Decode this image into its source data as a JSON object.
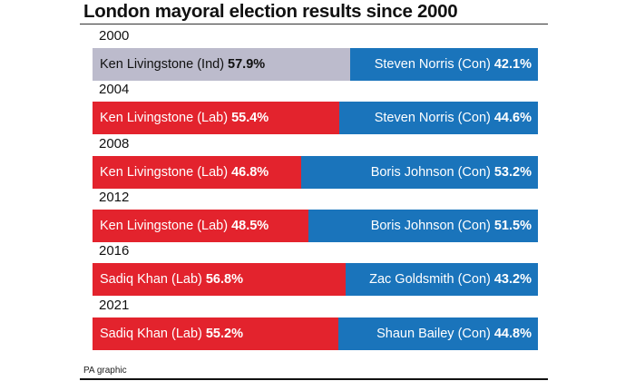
{
  "chart_data": {
    "type": "bar",
    "stacked": true,
    "orientation": "horizontal",
    "title": "London mayoral election results since 2000",
    "xlim": [
      0,
      100
    ],
    "categories": [
      "2000",
      "2004",
      "2008",
      "2012",
      "2016",
      "2021"
    ],
    "rows": [
      {
        "year": "2000",
        "left": {
          "name": "Ken Livingstone (Ind)",
          "pct": 57.9,
          "label": "57.9%",
          "party": "Ind"
        },
        "right": {
          "name": "Steven Norris (Con)",
          "pct": 42.1,
          "label": "42.1%",
          "party": "Con"
        }
      },
      {
        "year": "2004",
        "left": {
          "name": "Ken Livingstone (Lab)",
          "pct": 55.4,
          "label": "55.4%",
          "party": "Lab"
        },
        "right": {
          "name": "Steven Norris (Con)",
          "pct": 44.6,
          "label": "44.6%",
          "party": "Con"
        }
      },
      {
        "year": "2008",
        "left": {
          "name": "Ken Livingstone (Lab)",
          "pct": 46.8,
          "label": "46.8%",
          "party": "Lab"
        },
        "right": {
          "name": "Boris Johnson (Con)",
          "pct": 53.2,
          "label": "53.2%",
          "party": "Con"
        }
      },
      {
        "year": "2012",
        "left": {
          "name": "Ken Livingstone (Lab)",
          "pct": 48.5,
          "label": "48.5%",
          "party": "Lab"
        },
        "right": {
          "name": "Boris Johnson (Con)",
          "pct": 51.5,
          "label": "51.5%",
          "party": "Con"
        }
      },
      {
        "year": "2016",
        "left": {
          "name": "Sadiq Khan (Lab)",
          "pct": 56.8,
          "label": "56.8%",
          "party": "Lab"
        },
        "right": {
          "name": "Zac Goldsmith (Con)",
          "pct": 43.2,
          "label": "43.2%",
          "party": "Con"
        }
      },
      {
        "year": "2021",
        "left": {
          "name": "Sadiq Khan (Lab)",
          "pct": 55.2,
          "label": "55.2%",
          "party": "Lab"
        },
        "right": {
          "name": "Shaun Bailey (Con)",
          "pct": 44.8,
          "label": "44.8%",
          "party": "Con"
        }
      }
    ],
    "colors": {
      "Ind": "#bcbbcc",
      "Lab": "#e3232d",
      "Con": "#1a74bb"
    },
    "source": "PA graphic"
  }
}
